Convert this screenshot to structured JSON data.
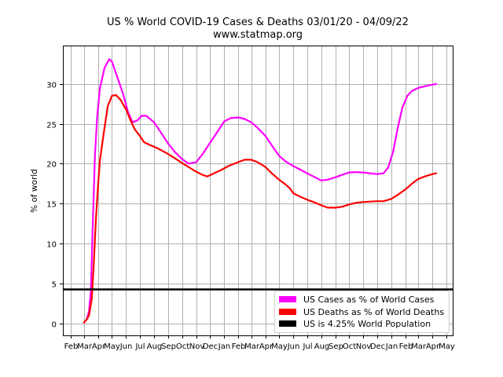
{
  "title": "US % World COVID-19 Cases & Deaths 03/01/20 - 04/09/22",
  "subtitle": "www.statmap.org",
  "chart_data": {
    "type": "line",
    "title": "US % World COVID-19 Cases & Deaths 03/01/20 - 04/09/22",
    "subtitle": "www.statmap.org",
    "xlabel": "",
    "ylabel": "% of world",
    "x_ticks": [
      "Feb",
      "Mar",
      "Apr",
      "May",
      "Jun",
      "Jul",
      "Aug",
      "Sep",
      "Oct",
      "Nov",
      "Dec",
      "Jan",
      "Feb",
      "Mar",
      "Apr",
      "May",
      "Jun",
      "Jul",
      "Aug",
      "Sep",
      "Oct",
      "Nov",
      "Dec",
      "Jan",
      "Feb",
      "Mar",
      "Apr",
      "May"
    ],
    "y_ticks": [
      0,
      5,
      10,
      15,
      20,
      25,
      30
    ],
    "ylim": [
      -1.5,
      34.8
    ],
    "grid": true,
    "legend_position": "lower right",
    "series": [
      {
        "name": "US Cases as % of World Cases",
        "color": "#ff00ff",
        "points": [
          [
            "2020-03-01",
            0.1
          ],
          [
            "2020-03-07",
            0.5
          ],
          [
            "2020-03-12",
            1.5
          ],
          [
            "2020-03-16",
            4
          ],
          [
            "2020-03-20",
            12
          ],
          [
            "2020-03-25",
            21
          ],
          [
            "2020-03-30",
            26
          ],
          [
            "2020-04-05",
            29.5
          ],
          [
            "2020-04-15",
            32
          ],
          [
            "2020-04-25",
            33.1
          ],
          [
            "2020-05-01",
            32.8
          ],
          [
            "2020-05-15",
            30.5
          ],
          [
            "2020-05-25",
            28.8
          ],
          [
            "2020-06-05",
            26.5
          ],
          [
            "2020-06-15",
            25.2
          ],
          [
            "2020-06-25",
            25.4
          ],
          [
            "2020-07-05",
            26
          ],
          [
            "2020-07-15",
            26
          ],
          [
            "2020-08-01",
            25.2
          ],
          [
            "2020-08-15",
            24
          ],
          [
            "2020-09-01",
            22.5
          ],
          [
            "2020-09-15",
            21.5
          ],
          [
            "2020-10-01",
            20.6
          ],
          [
            "2020-10-15",
            20
          ],
          [
            "2020-11-01",
            20.2
          ],
          [
            "2020-11-15",
            21.2
          ],
          [
            "2020-12-01",
            22.6
          ],
          [
            "2020-12-15",
            23.8
          ],
          [
            "2021-01-01",
            25.3
          ],
          [
            "2021-01-15",
            25.7
          ],
          [
            "2021-02-01",
            25.8
          ],
          [
            "2021-02-15",
            25.6
          ],
          [
            "2021-03-01",
            25.2
          ],
          [
            "2021-03-15",
            24.5
          ],
          [
            "2021-04-01",
            23.5
          ],
          [
            "2021-04-15",
            22.3
          ],
          [
            "2021-05-01",
            21
          ],
          [
            "2021-05-15",
            20.3
          ],
          [
            "2021-06-01",
            19.7
          ],
          [
            "2021-06-15",
            19.3
          ],
          [
            "2021-07-01",
            18.8
          ],
          [
            "2021-07-15",
            18.4
          ],
          [
            "2021-08-01",
            17.9
          ],
          [
            "2021-08-15",
            18
          ],
          [
            "2021-09-01",
            18.3
          ],
          [
            "2021-09-15",
            18.6
          ],
          [
            "2021-10-01",
            18.9
          ],
          [
            "2021-10-15",
            18.95
          ],
          [
            "2021-11-01",
            18.9
          ],
          [
            "2021-11-15",
            18.8
          ],
          [
            "2021-12-01",
            18.7
          ],
          [
            "2021-12-15",
            18.8
          ],
          [
            "2021-12-25",
            19.5
          ],
          [
            "2022-01-05",
            21.5
          ],
          [
            "2022-01-15",
            24.5
          ],
          [
            "2022-01-25",
            27
          ],
          [
            "2022-02-05",
            28.5
          ],
          [
            "2022-02-15",
            29.1
          ],
          [
            "2022-03-01",
            29.5
          ],
          [
            "2022-03-15",
            29.7
          ],
          [
            "2022-04-01",
            29.9
          ],
          [
            "2022-04-09",
            30
          ]
        ]
      },
      {
        "name": "US Deaths as % of World Deaths",
        "color": "#ff0000",
        "points": [
          [
            "2020-03-01",
            0.1
          ],
          [
            "2020-03-07",
            0.5
          ],
          [
            "2020-03-12",
            1
          ],
          [
            "2020-03-18",
            3
          ],
          [
            "2020-03-22",
            7
          ],
          [
            "2020-03-27",
            13
          ],
          [
            "2020-04-01",
            17.5
          ],
          [
            "2020-04-05",
            20.5
          ],
          [
            "2020-04-10",
            22.5
          ],
          [
            "2020-04-15",
            24.5
          ],
          [
            "2020-04-22",
            27.2
          ],
          [
            "2020-05-01",
            28.5
          ],
          [
            "2020-05-10",
            28.6
          ],
          [
            "2020-05-20",
            28
          ],
          [
            "2020-06-01",
            26.8
          ],
          [
            "2020-06-10",
            25.5
          ],
          [
            "2020-06-20",
            24.3
          ],
          [
            "2020-07-01",
            23.5
          ],
          [
            "2020-07-10",
            22.7
          ],
          [
            "2020-07-25",
            22.3
          ],
          [
            "2020-08-10",
            21.9
          ],
          [
            "2020-09-01",
            21.2
          ],
          [
            "2020-09-15",
            20.7
          ],
          [
            "2020-10-01",
            20.1
          ],
          [
            "2020-10-15",
            19.6
          ],
          [
            "2020-11-01",
            19
          ],
          [
            "2020-11-15",
            18.6
          ],
          [
            "2020-11-25",
            18.4
          ],
          [
            "2020-12-10",
            18.8
          ],
          [
            "2020-12-25",
            19.2
          ],
          [
            "2021-01-10",
            19.7
          ],
          [
            "2021-02-01",
            20.2
          ],
          [
            "2021-02-15",
            20.5
          ],
          [
            "2021-03-01",
            20.5
          ],
          [
            "2021-03-15",
            20.2
          ],
          [
            "2021-04-01",
            19.6
          ],
          [
            "2021-04-15",
            18.8
          ],
          [
            "2021-05-01",
            18
          ],
          [
            "2021-05-15",
            17.4
          ],
          [
            "2021-05-25",
            16.9
          ],
          [
            "2021-06-01",
            16.3
          ],
          [
            "2021-06-15",
            15.9
          ],
          [
            "2021-07-01",
            15.5
          ],
          [
            "2021-07-15",
            15.2
          ],
          [
            "2021-08-01",
            14.8
          ],
          [
            "2021-08-15",
            14.5
          ],
          [
            "2021-09-01",
            14.5
          ],
          [
            "2021-09-15",
            14.6
          ],
          [
            "2021-10-01",
            14.9
          ],
          [
            "2021-10-15",
            15.1
          ],
          [
            "2021-11-01",
            15.2
          ],
          [
            "2021-11-15",
            15.25
          ],
          [
            "2021-12-01",
            15.3
          ],
          [
            "2021-12-15",
            15.3
          ],
          [
            "2022-01-01",
            15.6
          ],
          [
            "2022-01-15",
            16.1
          ],
          [
            "2022-02-01",
            16.8
          ],
          [
            "2022-02-15",
            17.5
          ],
          [
            "2022-03-01",
            18.1
          ],
          [
            "2022-03-15",
            18.4
          ],
          [
            "2022-04-01",
            18.7
          ],
          [
            "2022-04-09",
            18.8
          ]
        ]
      },
      {
        "name": "US is 4.25% World Population",
        "color": "#000000",
        "constant": 4.25
      }
    ]
  }
}
